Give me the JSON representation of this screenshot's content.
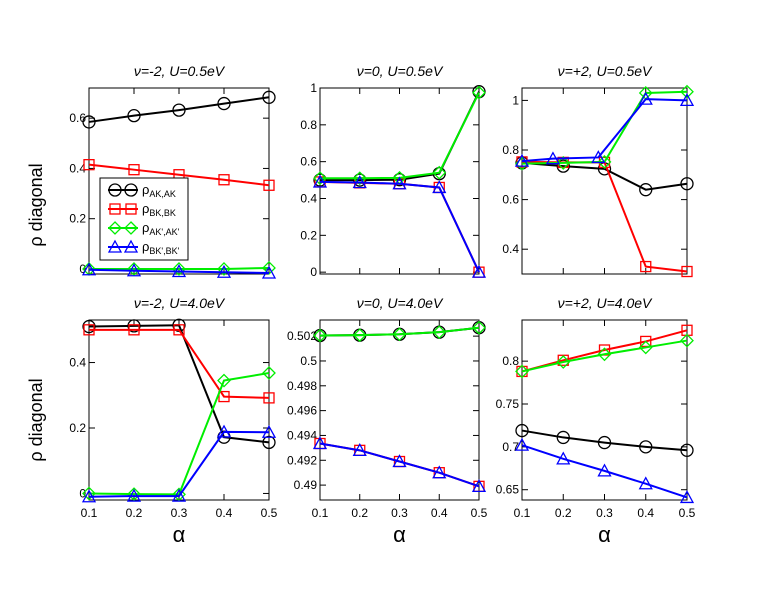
{
  "figure": {
    "ylabel_left": "ρ diagonal",
    "xlabel": "α"
  },
  "legend": [
    {
      "label": "ρ",
      "sub": "AK,AK",
      "color": "#000000",
      "marker": "circle"
    },
    {
      "label": "ρ",
      "sub": "BK,BK",
      "color": "#ff0000",
      "marker": "square"
    },
    {
      "label": "ρ",
      "sub": "AK',AK'",
      "color": "#00ee00",
      "marker": "diamond"
    },
    {
      "label": "ρ",
      "sub": "BK',BK'",
      "color": "#0000ff",
      "marker": "triangle"
    }
  ],
  "chart_data": [
    {
      "type": "line",
      "title": "ν=-2, U=0.5eV",
      "xlabel": "",
      "ylabel": "ρ diagonal",
      "xlim": [
        0.1,
        0.5
      ],
      "ylim": [
        -0.02,
        0.72
      ],
      "xticks": [],
      "yticks": [
        0,
        0.2,
        0.4,
        0.6
      ],
      "ytick_labels": [
        "0",
        "0.2",
        "0.4",
        "0.6"
      ],
      "series": [
        {
          "name": "ρAK,AK",
          "x": [
            0.1,
            0.2,
            0.3,
            0.4,
            0.5
          ],
          "values": [
            0.585,
            0.61,
            0.632,
            0.658,
            0.683
          ]
        },
        {
          "name": "ρBK,BK",
          "x": [
            0.1,
            0.2,
            0.3,
            0.4,
            0.5
          ],
          "values": [
            0.415,
            0.395,
            0.375,
            0.355,
            0.333
          ]
        },
        {
          "name": "ρAK',AK'",
          "x": [
            0.1,
            0.2,
            0.3,
            0.4,
            0.5
          ],
          "values": [
            0.0,
            0.0,
            0.0,
            0.0,
            0.004
          ]
        },
        {
          "name": "ρBK',BK'",
          "x": [
            0.1,
            0.2,
            0.3,
            0.4,
            0.5
          ],
          "values": [
            -0.003,
            -0.007,
            -0.01,
            -0.013,
            -0.016
          ]
        }
      ]
    },
    {
      "type": "line",
      "title": "ν=0, U=0.5eV",
      "xlabel": "",
      "ylabel": "",
      "xlim": [
        0.1,
        0.5
      ],
      "ylim": [
        -0.01,
        1.0
      ],
      "xticks": [],
      "yticks": [
        0,
        0.2,
        0.4,
        0.6,
        0.8,
        1
      ],
      "ytick_labels": [
        "0",
        "0.2",
        "0.4",
        "0.6",
        "0.8",
        "1"
      ],
      "series": [
        {
          "name": "ρAK,AK",
          "x": [
            0.1,
            0.2,
            0.3,
            0.4,
            0.5
          ],
          "values": [
            0.5,
            0.5,
            0.502,
            0.535,
            0.98
          ]
        },
        {
          "name": "ρBK,BK",
          "x": [
            0.1,
            0.2,
            0.3,
            0.4,
            0.5
          ],
          "values": [
            0.49,
            0.485,
            0.48,
            0.46,
            0.0
          ]
        },
        {
          "name": "ρAK',AK'",
          "x": [
            0.1,
            0.2,
            0.3,
            0.4,
            0.5
          ],
          "values": [
            0.51,
            0.51,
            0.512,
            0.54,
            0.975
          ]
        },
        {
          "name": "ρBK',BK'",
          "x": [
            0.1,
            0.2,
            0.3,
            0.4,
            0.5
          ],
          "values": [
            0.49,
            0.487,
            0.48,
            0.46,
            0.0
          ]
        }
      ]
    },
    {
      "type": "line",
      "title": "ν=+2, U=0.5eV",
      "xlabel": "",
      "ylabel": "",
      "xlim": [
        0.1,
        0.5
      ],
      "ylim": [
        0.3,
        1.05
      ],
      "xticks": [],
      "yticks": [
        0.4,
        0.6,
        0.8,
        1
      ],
      "ytick_labels": [
        "0.4",
        "0.6",
        "0.8",
        "1"
      ],
      "series": [
        {
          "name": "ρAK,AK",
          "x": [
            0.1,
            0.2,
            0.3,
            0.4,
            0.5
          ],
          "values": [
            0.748,
            0.735,
            0.724,
            0.64,
            0.664
          ]
        },
        {
          "name": "ρBK,BK",
          "x": [
            0.1,
            0.2,
            0.3,
            0.4,
            0.5
          ],
          "values": [
            0.752,
            0.75,
            0.75,
            0.33,
            0.31
          ]
        },
        {
          "name": "ρAK',AK'",
          "x": [
            0.1,
            0.2,
            0.3,
            0.4,
            0.5
          ],
          "values": [
            0.745,
            0.748,
            0.752,
            1.03,
            1.035
          ]
        },
        {
          "name": "ρBK',BK'",
          "x": [
            0.1,
            0.175,
            0.285,
            0.4,
            0.5
          ],
          "values": [
            0.755,
            0.765,
            0.77,
            1.005,
            1.0
          ]
        }
      ]
    },
    {
      "type": "line",
      "title": "ν=-2, U=4.0eV",
      "xlabel": "α",
      "ylabel": "ρ diagonal",
      "xlim": [
        0.1,
        0.5
      ],
      "ylim": [
        -0.02,
        0.53
      ],
      "xticks": [
        0.1,
        0.2,
        0.3,
        0.4,
        0.5
      ],
      "xtick_labels": [
        "0.1",
        "0.2",
        "0.3",
        "0.4",
        "0.5"
      ],
      "yticks": [
        0,
        0.2,
        0.4
      ],
      "ytick_labels": [
        "0",
        "0.2",
        "0.4"
      ],
      "series": [
        {
          "name": "ρAK,AK",
          "x": [
            0.1,
            0.2,
            0.3,
            0.4,
            0.5
          ],
          "values": [
            0.51,
            0.512,
            0.514,
            0.172,
            0.156
          ]
        },
        {
          "name": "ρBK,BK",
          "x": [
            0.1,
            0.2,
            0.3,
            0.4,
            0.5
          ],
          "values": [
            0.5,
            0.5,
            0.5,
            0.296,
            0.292
          ]
        },
        {
          "name": "ρAK',AK'",
          "x": [
            0.1,
            0.2,
            0.3,
            0.4,
            0.5
          ],
          "values": [
            0.0,
            -0.002,
            -0.003,
            0.345,
            0.368
          ]
        },
        {
          "name": "ρBK',BK'",
          "x": [
            0.1,
            0.2,
            0.3,
            0.4,
            0.5
          ],
          "values": [
            -0.01,
            -0.008,
            -0.008,
            0.188,
            0.187
          ]
        }
      ]
    },
    {
      "type": "line",
      "title": "ν=0, U=4.0eV",
      "xlabel": "α",
      "ylabel": "",
      "xlim": [
        0.1,
        0.5
      ],
      "ylim": [
        0.4888,
        0.5033
      ],
      "xticks": [
        0.1,
        0.2,
        0.3,
        0.4,
        0.5
      ],
      "xtick_labels": [
        "0.1",
        "0.2",
        "0.3",
        "0.4",
        "0.5"
      ],
      "yticks": [
        0.49,
        0.492,
        0.494,
        0.496,
        0.498,
        0.5,
        0.502
      ],
      "ytick_labels": [
        "0.49",
        "0.492",
        "0.494",
        "0.496",
        "0.498",
        "0.5",
        "0.502"
      ],
      "series": [
        {
          "name": "ρAK,AK",
          "x": [
            0.1,
            0.2,
            0.3,
            0.4,
            0.5
          ],
          "values": [
            0.50205,
            0.50208,
            0.50215,
            0.50232,
            0.50268
          ]
        },
        {
          "name": "ρBK,BK",
          "x": [
            0.1,
            0.2,
            0.3,
            0.4,
            0.5
          ],
          "values": [
            0.49335,
            0.4928,
            0.4919,
            0.491,
            0.4899
          ]
        },
        {
          "name": "ρAK',AK'",
          "x": [
            0.1,
            0.2,
            0.3,
            0.4,
            0.5
          ],
          "values": [
            0.50205,
            0.50208,
            0.50215,
            0.50232,
            0.50268
          ]
        },
        {
          "name": "ρBK',BK'",
          "x": [
            0.1,
            0.2,
            0.3,
            0.4,
            0.5
          ],
          "values": [
            0.49335,
            0.4928,
            0.4919,
            0.491,
            0.4899
          ]
        }
      ]
    },
    {
      "type": "line",
      "title": "ν=+2, U=4.0eV",
      "xlabel": "α",
      "ylabel": "",
      "xlim": [
        0.1,
        0.5
      ],
      "ylim": [
        0.638,
        0.848
      ],
      "xticks": [
        0.1,
        0.2,
        0.3,
        0.4,
        0.5
      ],
      "xtick_labels": [
        "0.1",
        "0.2",
        "0.3",
        "0.4",
        "0.5"
      ],
      "yticks": [
        0.65,
        0.7,
        0.75,
        0.8
      ],
      "ytick_labels": [
        "0.65",
        "0.7",
        "0.75",
        "0.8"
      ],
      "series": [
        {
          "name": "ρAK,AK",
          "x": [
            0.1,
            0.2,
            0.3,
            0.4,
            0.5
          ],
          "values": [
            0.719,
            0.711,
            0.705,
            0.7,
            0.696
          ]
        },
        {
          "name": "ρBK,BK",
          "x": [
            0.1,
            0.2,
            0.3,
            0.4,
            0.5
          ],
          "values": [
            0.788,
            0.801,
            0.813,
            0.823,
            0.836
          ]
        },
        {
          "name": "ρAK',AK'",
          "x": [
            0.1,
            0.2,
            0.3,
            0.4,
            0.5
          ],
          "values": [
            0.788,
            0.799,
            0.808,
            0.816,
            0.824
          ]
        },
        {
          "name": "ρBK',BK'",
          "x": [
            0.1,
            0.2,
            0.3,
            0.4,
            0.5
          ],
          "values": [
            0.702,
            0.686,
            0.672,
            0.657,
            0.641
          ]
        }
      ]
    }
  ]
}
